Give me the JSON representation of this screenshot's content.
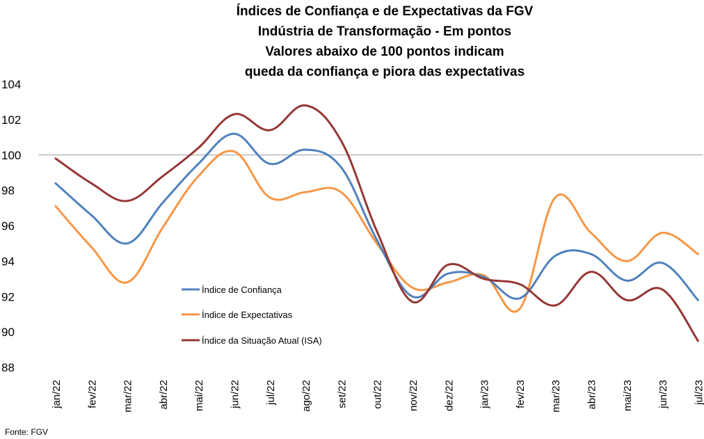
{
  "chart_data": {
    "type": "line",
    "title_lines": [
      "Índices de Confiança e de Expectativas da FGV",
      "Indústria de Transformação - Em pontos",
      "Valores abaixo de 100 pontos indicam",
      "queda da confiança e piora das expectativas"
    ],
    "categories": [
      "jan/22",
      "fev/22",
      "mar/22",
      "abr/22",
      "mai/22",
      "jun/22",
      "jul/22",
      "ago/22",
      "set/22",
      "out/22",
      "nov/22",
      "dez/22",
      "jan/23",
      "fev/23",
      "mar/23",
      "abr/23",
      "mai/23",
      "jun/23",
      "jul/23"
    ],
    "yticks": [
      "104",
      "102",
      "100",
      "98",
      "96",
      "94",
      "92",
      "90",
      "88"
    ],
    "ylim": [
      88,
      104
    ],
    "reference_line": 100,
    "series": [
      {
        "name": "Índice de Confiança",
        "color": "#4f81bd",
        "values": [
          98.4,
          96.6,
          95.0,
          97.3,
          99.5,
          101.2,
          99.5,
          100.3,
          99.3,
          95.2,
          92.0,
          93.3,
          93.1,
          91.9,
          94.3,
          94.4,
          92.9,
          93.9,
          91.8
        ]
      },
      {
        "name": "Índice de Expectativas",
        "color": "#f79646",
        "values": [
          97.1,
          94.8,
          92.8,
          95.9,
          98.8,
          100.2,
          97.6,
          97.9,
          97.9,
          95.0,
          92.5,
          92.8,
          93.2,
          91.3,
          97.6,
          95.6,
          94.0,
          95.6,
          94.4
        ]
      },
      {
        "name": "Índice da Situação Atual (ISA)",
        "color": "#953735",
        "values": [
          99.8,
          98.4,
          97.4,
          98.8,
          100.4,
          102.3,
          101.4,
          102.8,
          100.8,
          95.7,
          91.7,
          93.8,
          93.0,
          92.7,
          91.5,
          93.4,
          91.8,
          92.4,
          89.5
        ]
      }
    ],
    "legend_position": "lower-left",
    "grid": false
  },
  "source": "Fonte: FGV"
}
